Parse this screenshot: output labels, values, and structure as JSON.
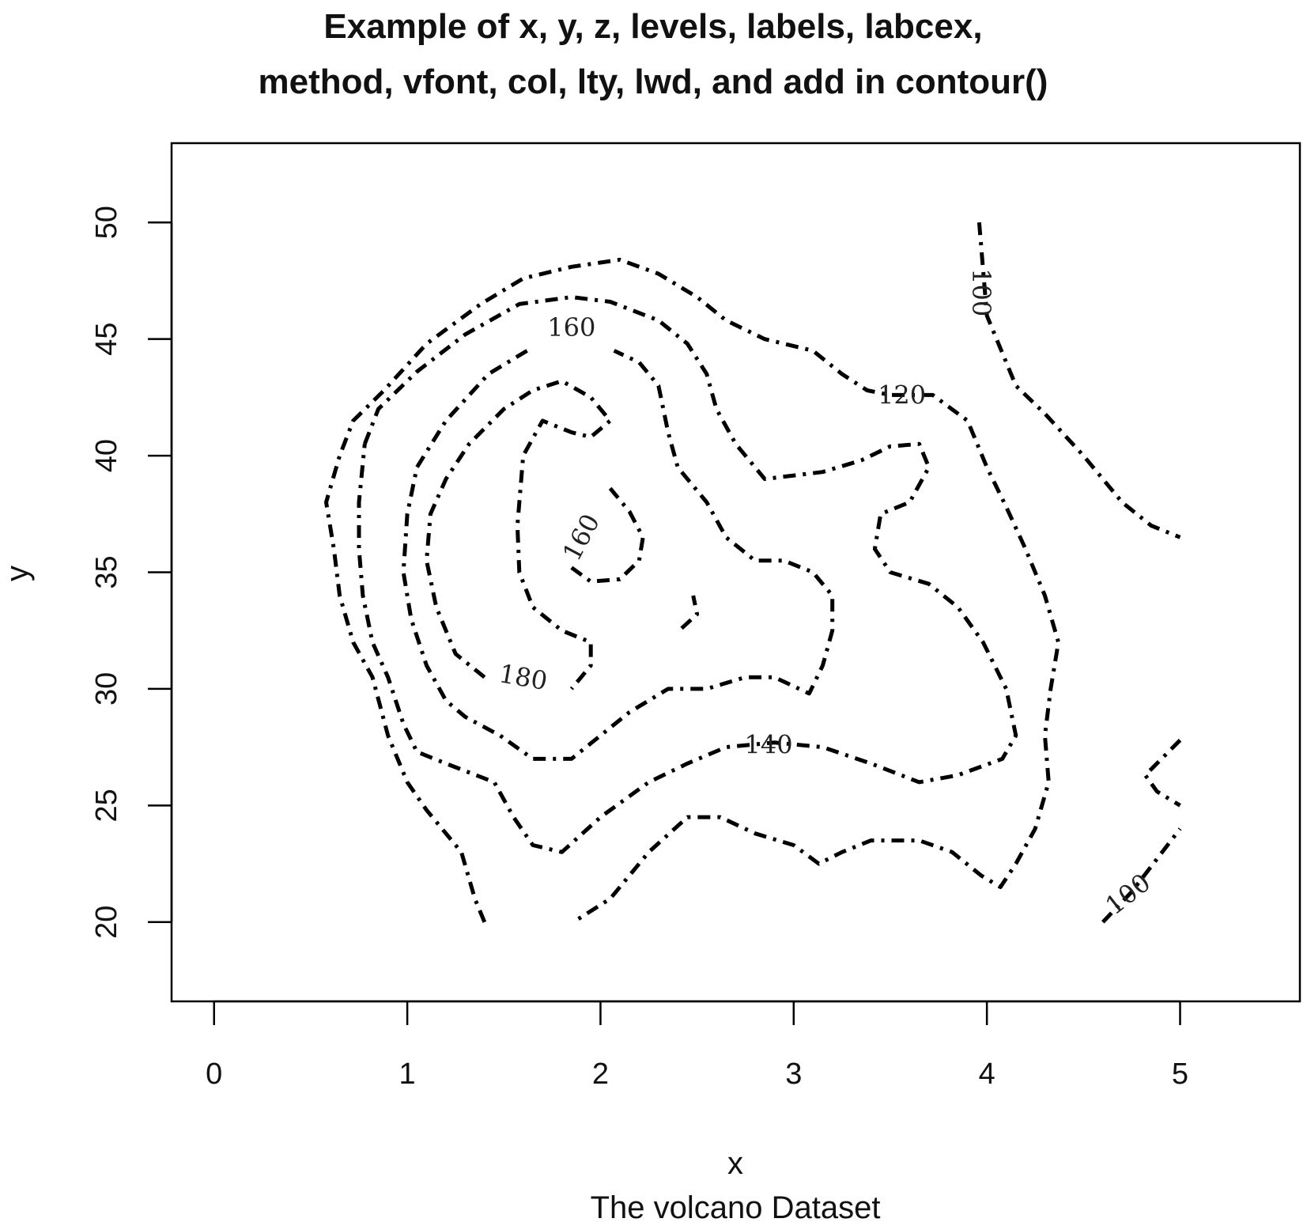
{
  "chart_data": {
    "type": "contour",
    "title_lines": [
      "Example of x, y, z, levels, labels, labcex,",
      "method, vfont, col, lty, lwd, and add in contour()"
    ],
    "xlabel": "x",
    "subtitle": "The volcano Dataset",
    "ylabel": "y",
    "x_ticks": [
      0,
      1,
      2,
      3,
      4,
      5
    ],
    "y_ticks": [
      20,
      25,
      30,
      35,
      40,
      45,
      50
    ],
    "xlim": [
      -0.22,
      5.62
    ],
    "ylim": [
      16.6,
      53.4
    ],
    "line_color": "#000000",
    "line_style": "dotdash",
    "contours": [
      {
        "level": 100,
        "points": [
          [
            3.96,
            50.0
          ],
          [
            3.98,
            48.0
          ],
          [
            4.0,
            46.0
          ],
          [
            4.05,
            45.0
          ],
          [
            4.1,
            44.0
          ],
          [
            4.15,
            43.0
          ],
          [
            4.3,
            41.8
          ],
          [
            4.5,
            40.0
          ],
          [
            4.7,
            38.0
          ],
          [
            4.85,
            37.0
          ],
          [
            5.0,
            36.5
          ]
        ]
      },
      {
        "level": 100,
        "points": [
          [
            4.6,
            20.0
          ],
          [
            4.75,
            21.3
          ],
          [
            5.0,
            24.0
          ]
        ]
      },
      {
        "level": 100,
        "points": [
          [
            5.0,
            27.8
          ],
          [
            4.82,
            26.3
          ],
          [
            4.88,
            25.6
          ],
          [
            5.0,
            25.0
          ]
        ]
      },
      {
        "level": 120,
        "points": [
          [
            1.4,
            20.0
          ],
          [
            1.35,
            21.0
          ],
          [
            1.28,
            23.0
          ],
          [
            1.1,
            24.8
          ],
          [
            1.0,
            26.0
          ],
          [
            0.9,
            28.0
          ],
          [
            0.82,
            30.5
          ],
          [
            0.72,
            32.0
          ],
          [
            0.65,
            34.0
          ],
          [
            0.62,
            36.0
          ],
          [
            0.58,
            38.0
          ],
          [
            0.65,
            40.0
          ],
          [
            0.72,
            41.5
          ],
          [
            0.88,
            42.8
          ],
          [
            1.1,
            44.8
          ],
          [
            1.38,
            46.5
          ],
          [
            1.6,
            47.6
          ],
          [
            1.85,
            48.1
          ],
          [
            2.1,
            48.4
          ],
          [
            2.3,
            47.8
          ],
          [
            2.5,
            46.8
          ],
          [
            2.65,
            45.8
          ],
          [
            2.85,
            45.0
          ],
          [
            3.1,
            44.5
          ],
          [
            3.25,
            43.5
          ],
          [
            3.38,
            42.8
          ],
          [
            3.5,
            42.6
          ],
          [
            3.72,
            42.6
          ],
          [
            3.9,
            41.5
          ],
          [
            4.0,
            39.5
          ],
          [
            4.1,
            37.8
          ],
          [
            4.2,
            36.0
          ],
          [
            4.3,
            34.0
          ],
          [
            4.37,
            32.0
          ],
          [
            4.33,
            30.0
          ],
          [
            4.3,
            28.0
          ],
          [
            4.32,
            26.0
          ],
          [
            4.25,
            24.0
          ],
          [
            4.15,
            22.5
          ],
          [
            4.07,
            21.5
          ],
          [
            3.97,
            22.0
          ],
          [
            3.82,
            23.0
          ],
          [
            3.65,
            23.5
          ],
          [
            3.4,
            23.5
          ],
          [
            3.25,
            23.0
          ],
          [
            3.13,
            22.5
          ],
          [
            3.0,
            23.3
          ],
          [
            2.8,
            23.8
          ],
          [
            2.62,
            24.5
          ],
          [
            2.45,
            24.5
          ],
          [
            2.25,
            23.0
          ],
          [
            2.05,
            21.0
          ],
          [
            1.86,
            20.0
          ]
        ]
      },
      {
        "level": 140,
        "points": [
          [
            2.42,
            32.6
          ],
          [
            2.5,
            33.2
          ],
          [
            2.48,
            34.0
          ]
        ]
      },
      {
        "level": 140,
        "points": [
          [
            0.78,
            40.5
          ],
          [
            0.85,
            42.0
          ],
          [
            1.05,
            43.6
          ],
          [
            1.3,
            45.2
          ],
          [
            1.58,
            46.5
          ],
          [
            1.85,
            46.8
          ],
          [
            2.05,
            46.6
          ],
          [
            2.3,
            45.8
          ],
          [
            2.45,
            44.8
          ],
          [
            2.55,
            43.5
          ],
          [
            2.6,
            42.0
          ],
          [
            2.7,
            40.5
          ],
          [
            2.85,
            39.0
          ],
          [
            3.15,
            39.3
          ],
          [
            3.35,
            39.8
          ],
          [
            3.5,
            40.4
          ],
          [
            3.65,
            40.5
          ],
          [
            3.7,
            39.5
          ],
          [
            3.6,
            38.0
          ],
          [
            3.45,
            37.5
          ],
          [
            3.42,
            36.0
          ],
          [
            3.5,
            35.0
          ],
          [
            3.7,
            34.5
          ],
          [
            3.85,
            33.5
          ],
          [
            3.98,
            32.0
          ],
          [
            4.1,
            30.0
          ],
          [
            4.15,
            28.0
          ],
          [
            4.08,
            27.0
          ],
          [
            3.85,
            26.3
          ],
          [
            3.65,
            26.0
          ],
          [
            3.4,
            26.8
          ],
          [
            3.15,
            27.5
          ],
          [
            2.9,
            27.7
          ],
          [
            2.65,
            27.5
          ],
          [
            2.45,
            26.8
          ],
          [
            2.25,
            26.0
          ],
          [
            2.0,
            24.5
          ],
          [
            1.8,
            23.0
          ],
          [
            1.65,
            23.3
          ],
          [
            1.55,
            24.5
          ],
          [
            1.45,
            26.0
          ],
          [
            1.2,
            26.8
          ],
          [
            1.05,
            27.3
          ],
          [
            0.98,
            28.5
          ],
          [
            0.9,
            30.5
          ],
          [
            0.82,
            32.0
          ],
          [
            0.77,
            34.0
          ],
          [
            0.75,
            36.0
          ],
          [
            0.75,
            38.0
          ],
          [
            0.78,
            40.5
          ]
        ]
      },
      {
        "level": 160,
        "points": [
          [
            1.62,
            44.5
          ],
          [
            1.42,
            43.5
          ],
          [
            1.2,
            41.5
          ],
          [
            1.05,
            39.5
          ],
          [
            1.0,
            37.5
          ],
          [
            0.98,
            35.0
          ],
          [
            1.02,
            33.0
          ],
          [
            1.1,
            31.0
          ],
          [
            1.2,
            29.5
          ],
          [
            1.3,
            28.8
          ],
          [
            1.48,
            28.0
          ],
          [
            1.65,
            27.0
          ],
          [
            1.85,
            27.0
          ],
          [
            2.0,
            28.0
          ],
          [
            2.15,
            29.0
          ],
          [
            2.35,
            30.0
          ],
          [
            2.55,
            30.0
          ],
          [
            2.75,
            30.5
          ],
          [
            2.9,
            30.5
          ],
          [
            3.08,
            29.8
          ],
          [
            3.15,
            31.0
          ],
          [
            3.2,
            32.5
          ],
          [
            3.2,
            34.0
          ],
          [
            3.1,
            35.0
          ],
          [
            2.95,
            35.5
          ],
          [
            2.8,
            35.5
          ],
          [
            2.65,
            36.5
          ],
          [
            2.55,
            38.0
          ],
          [
            2.4,
            39.5
          ],
          [
            2.35,
            41.0
          ],
          [
            2.3,
            43.0
          ],
          [
            2.2,
            44.0
          ],
          [
            2.07,
            44.5
          ]
        ]
      },
      {
        "level": 160,
        "points": [
          [
            1.85,
            35.2
          ],
          [
            1.95,
            34.6
          ],
          [
            2.1,
            34.7
          ],
          [
            2.2,
            35.5
          ],
          [
            2.22,
            36.5
          ],
          [
            2.15,
            37.6
          ],
          [
            2.05,
            38.6
          ]
        ]
      },
      {
        "level": 180,
        "points": [
          [
            1.4,
            30.5
          ],
          [
            1.25,
            31.5
          ],
          [
            1.15,
            33.5
          ],
          [
            1.1,
            35.5
          ],
          [
            1.12,
            37.5
          ],
          [
            1.2,
            39.0
          ],
          [
            1.32,
            40.5
          ],
          [
            1.5,
            42.0
          ],
          [
            1.65,
            42.8
          ],
          [
            1.8,
            43.2
          ],
          [
            1.95,
            42.5
          ],
          [
            2.05,
            41.5
          ],
          [
            1.95,
            40.8
          ],
          [
            1.85,
            41.0
          ],
          [
            1.7,
            41.5
          ],
          [
            1.6,
            40.0
          ],
          [
            1.57,
            37.0
          ],
          [
            1.58,
            35.0
          ],
          [
            1.65,
            33.5
          ],
          [
            1.8,
            32.5
          ],
          [
            1.95,
            32.0
          ],
          [
            1.95,
            31.0
          ],
          [
            1.85,
            30.0
          ]
        ]
      }
    ],
    "labels": [
      {
        "text": "100",
        "x": 3.97,
        "y": 47.0,
        "angle": 90
      },
      {
        "text": "100",
        "x": 4.73,
        "y": 21.2,
        "angle": -38
      },
      {
        "text": "120",
        "x": 3.56,
        "y": 42.6,
        "angle": 0
      },
      {
        "text": "140",
        "x": 2.87,
        "y": 27.6,
        "angle": 0
      },
      {
        "text": "160",
        "x": 1.85,
        "y": 45.5,
        "angle": 0
      },
      {
        "text": "160",
        "x": 1.9,
        "y": 36.5,
        "angle": -62
      },
      {
        "text": "180",
        "x": 1.6,
        "y": 30.5,
        "angle": 10
      }
    ]
  }
}
